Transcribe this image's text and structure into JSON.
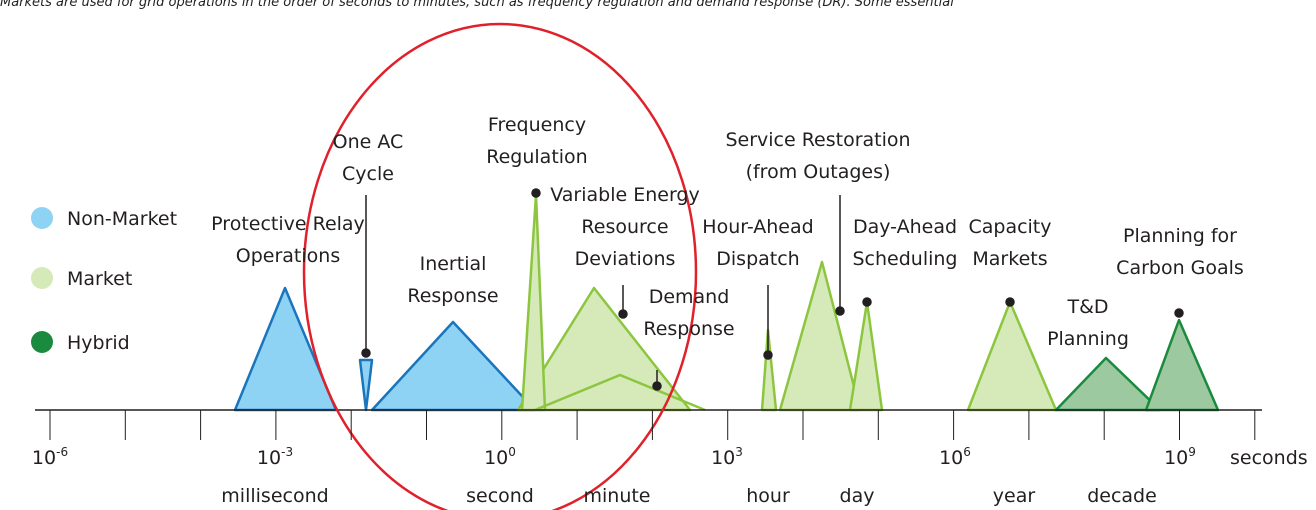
{
  "caption": "Markets are used for grid operations in the order of seconds to minutes, such as frequency regulation and demand response (DR). Some essential",
  "legend": [
    {
      "label": "Non-Market"
    },
    {
      "label": "Market"
    },
    {
      "label": "Hybrid"
    }
  ],
  "labels": [
    {
      "lines": [
        "Protective Relay",
        "Operations"
      ]
    },
    {
      "lines": [
        "One AC",
        "Cycle"
      ]
    },
    {
      "lines": [
        "Frequency",
        "Regulation"
      ]
    },
    {
      "lines": [
        "Variable Energy",
        "Resource",
        "Deviations"
      ]
    },
    {
      "lines": [
        "Inertial",
        "Response"
      ]
    },
    {
      "lines": [
        "Demand",
        "Response"
      ]
    },
    {
      "lines": [
        "Hour-Ahead",
        "Dispatch"
      ]
    },
    {
      "lines": [
        "Service Restoration",
        "(from Outages)"
      ]
    },
    {
      "lines": [
        "Day-Ahead",
        "Scheduling"
      ]
    },
    {
      "lines": [
        "Capacity",
        "Markets"
      ]
    },
    {
      "lines": [
        "T&D",
        "Planning"
      ]
    },
    {
      "lines": [
        "Planning for",
        "Carbon Goals"
      ]
    }
  ],
  "axis": {
    "ticks": [
      {
        "base": "10",
        "exp": "-6"
      },
      {
        "base": "10",
        "exp": "-3"
      },
      {
        "base": "10",
        "exp": "0"
      },
      {
        "base": "10",
        "exp": "3"
      },
      {
        "base": "10",
        "exp": "6"
      },
      {
        "base": "10",
        "exp": "9"
      }
    ],
    "unit": "seconds",
    "units": [
      "millisecond",
      "second",
      "minute",
      "hour",
      "day",
      "year",
      "decade"
    ]
  }
}
